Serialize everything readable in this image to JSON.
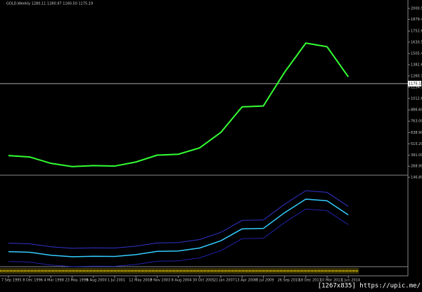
{
  "chart_data": {
    "type": "line",
    "title": "GOLD,Weekly  1280.11 1280.97 1160.50 1175.19",
    "categories": [
      "7 Sep 1995",
      "8 Dec 1996",
      "4 Mar 1998",
      "23 May 1999",
      "6 Aug 2000",
      "1 Jul 2001",
      "12 May 2002",
      "9 Nov 2003",
      "8 Aug 2004",
      "30 Oct 2005",
      "21 Jan 2007",
      "13 Apr 2008",
      "5 Jul 2009",
      "26 Sep 2010",
      "18 Dec 2011",
      "10 Mar 2013",
      "1 Jun 2014"
    ],
    "values": [
      385,
      370,
      300,
      265,
      275,
      270,
      315,
      390,
      400,
      470,
      640,
      920,
      930,
      1300,
      1620,
      1580,
      1250
    ],
    "color": "#33ff33",
    "last": {
      "value": 1175.19,
      "label": "1175.19"
    },
    "ylim": [
      146.8,
      2000.5
    ],
    "yticks": [
      {
        "value": 146.8,
        "label": "146.80"
      },
      {
        "value": 268.9,
        "label": "268.90"
      },
      {
        "value": 391.0,
        "label": "391.00"
      },
      {
        "value": 515.2,
        "label": "515.20"
      },
      {
        "value": 638.9,
        "label": "638.90"
      },
      {
        "value": 763.0,
        "label": "763.00"
      },
      {
        "value": 886.6,
        "label": "886.60"
      },
      {
        "value": 1012.6,
        "label": "1012.60"
      },
      {
        "value": 1134.7,
        "label": "1134.70"
      },
      {
        "value": 1260.1,
        "label": "1260.10"
      },
      {
        "value": 1382.6,
        "label": "1382.60"
      },
      {
        "value": 1505.4,
        "label": "1505.40"
      },
      {
        "value": 1630.55,
        "label": "1630.55"
      },
      {
        "value": 1752.65,
        "label": "1752.65"
      },
      {
        "value": 1879.4,
        "label": "1879.40"
      },
      {
        "value": 2000.5,
        "label": "2000.50"
      }
    ],
    "watermark": "[1267x835] https://upic.me/"
  }
}
